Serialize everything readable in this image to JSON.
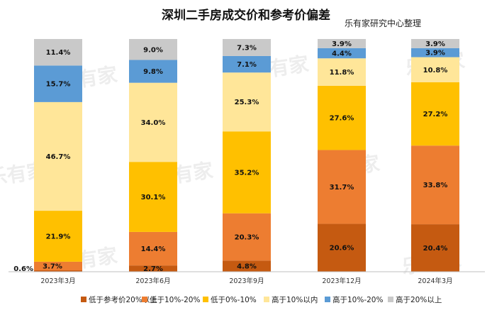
{
  "chart_data": {
    "type": "bar",
    "stacked": true,
    "title": "深圳二手房成交价和参考价偏差",
    "source": "乐有家研究中心整理",
    "watermark": "乐有家",
    "categories": [
      "2023年3月",
      "2023年6月",
      "2023年9月",
      "2023年12月",
      "2024年3月"
    ],
    "ylim": [
      0,
      100
    ],
    "legend_position": "bottom",
    "grid": false,
    "series": [
      {
        "name": "低于参考价20%以上",
        "color": "#c55a11",
        "values": [
          0.6,
          2.7,
          4.8,
          20.6,
          20.4
        ],
        "labels": [
          "0.6%",
          "2.7%",
          "4.8%",
          "20.6%",
          "20.4%"
        ]
      },
      {
        "name": "低于10%-20%",
        "color": "#ed7d31",
        "values": [
          3.7,
          14.4,
          20.3,
          31.7,
          33.8
        ],
        "labels": [
          "3.7%",
          "14.4%",
          "20.3%",
          "31.7%",
          "33.8%"
        ]
      },
      {
        "name": "低于0%-10%",
        "color": "#ffc000",
        "values": [
          21.9,
          30.1,
          35.2,
          27.6,
          27.2
        ],
        "labels": [
          "21.9%",
          "30.1%",
          "35.2%",
          "27.6%",
          "27.2%"
        ]
      },
      {
        "name": "高于10%以内",
        "color": "#ffe699",
        "values": [
          46.7,
          34.0,
          25.3,
          11.8,
          10.8
        ],
        "labels": [
          "46.7%",
          "34.0%",
          "25.3%",
          "11.8%",
          "10.8%"
        ]
      },
      {
        "name": "高于10%-20%",
        "color": "#5b9bd5",
        "values": [
          15.7,
          9.8,
          7.1,
          4.4,
          3.9
        ],
        "labels": [
          "15.7%",
          "9.8%",
          "7.1%",
          "4.4%",
          "3.9%"
        ]
      },
      {
        "name": "高于20%以上",
        "color": "#c9c9c9",
        "values": [
          11.4,
          9.0,
          7.3,
          3.9,
          3.9
        ],
        "labels": [
          "11.4%",
          "9.0%",
          "7.3%",
          "3.9%",
          "3.9%"
        ]
      }
    ]
  }
}
